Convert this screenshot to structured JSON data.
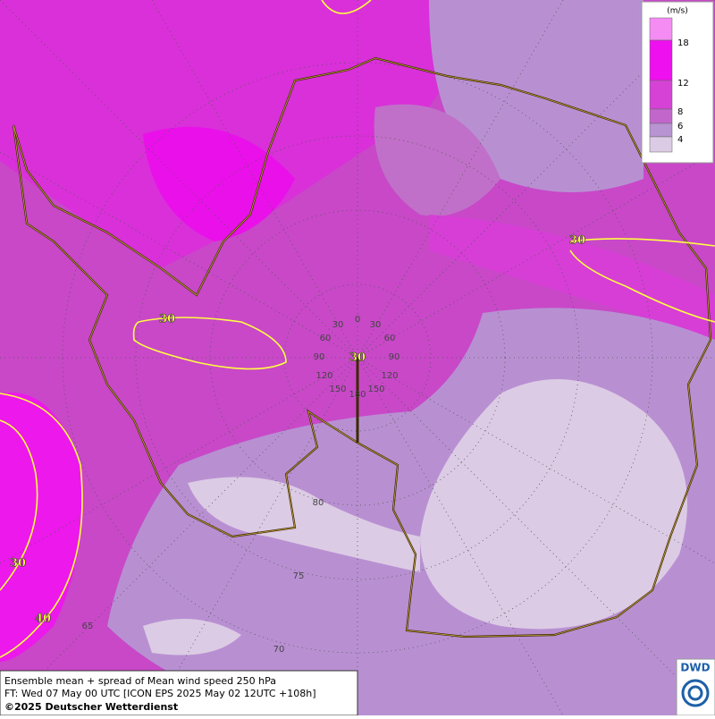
{
  "legend": {
    "unit": "(m/s)",
    "labels": [
      18,
      12,
      8,
      6,
      4
    ],
    "colors": [
      "#f48cf4",
      "#ee10ee",
      "#d642d6",
      "#c266cc",
      "#b894d2",
      "#dccbe4"
    ]
  },
  "contour_labels": [
    "30",
    "30",
    "30",
    "40",
    "30"
  ],
  "graticule_labels": [
    "0",
    "30",
    "30",
    "60",
    "60",
    "90",
    "90",
    "120",
    "120",
    "150",
    "150",
    "180",
    "80",
    "75",
    "70",
    "65"
  ],
  "footer": {
    "line1": "Ensemble mean + spread of Mean wind speed 250 hPa",
    "line2": "FT: Wed 07 May 00 UTC [ICON EPS 2025 May 02 12UTC +108h]",
    "line3": "©2025 Deutscher Wetterdienst"
  },
  "logo": "DWD"
}
